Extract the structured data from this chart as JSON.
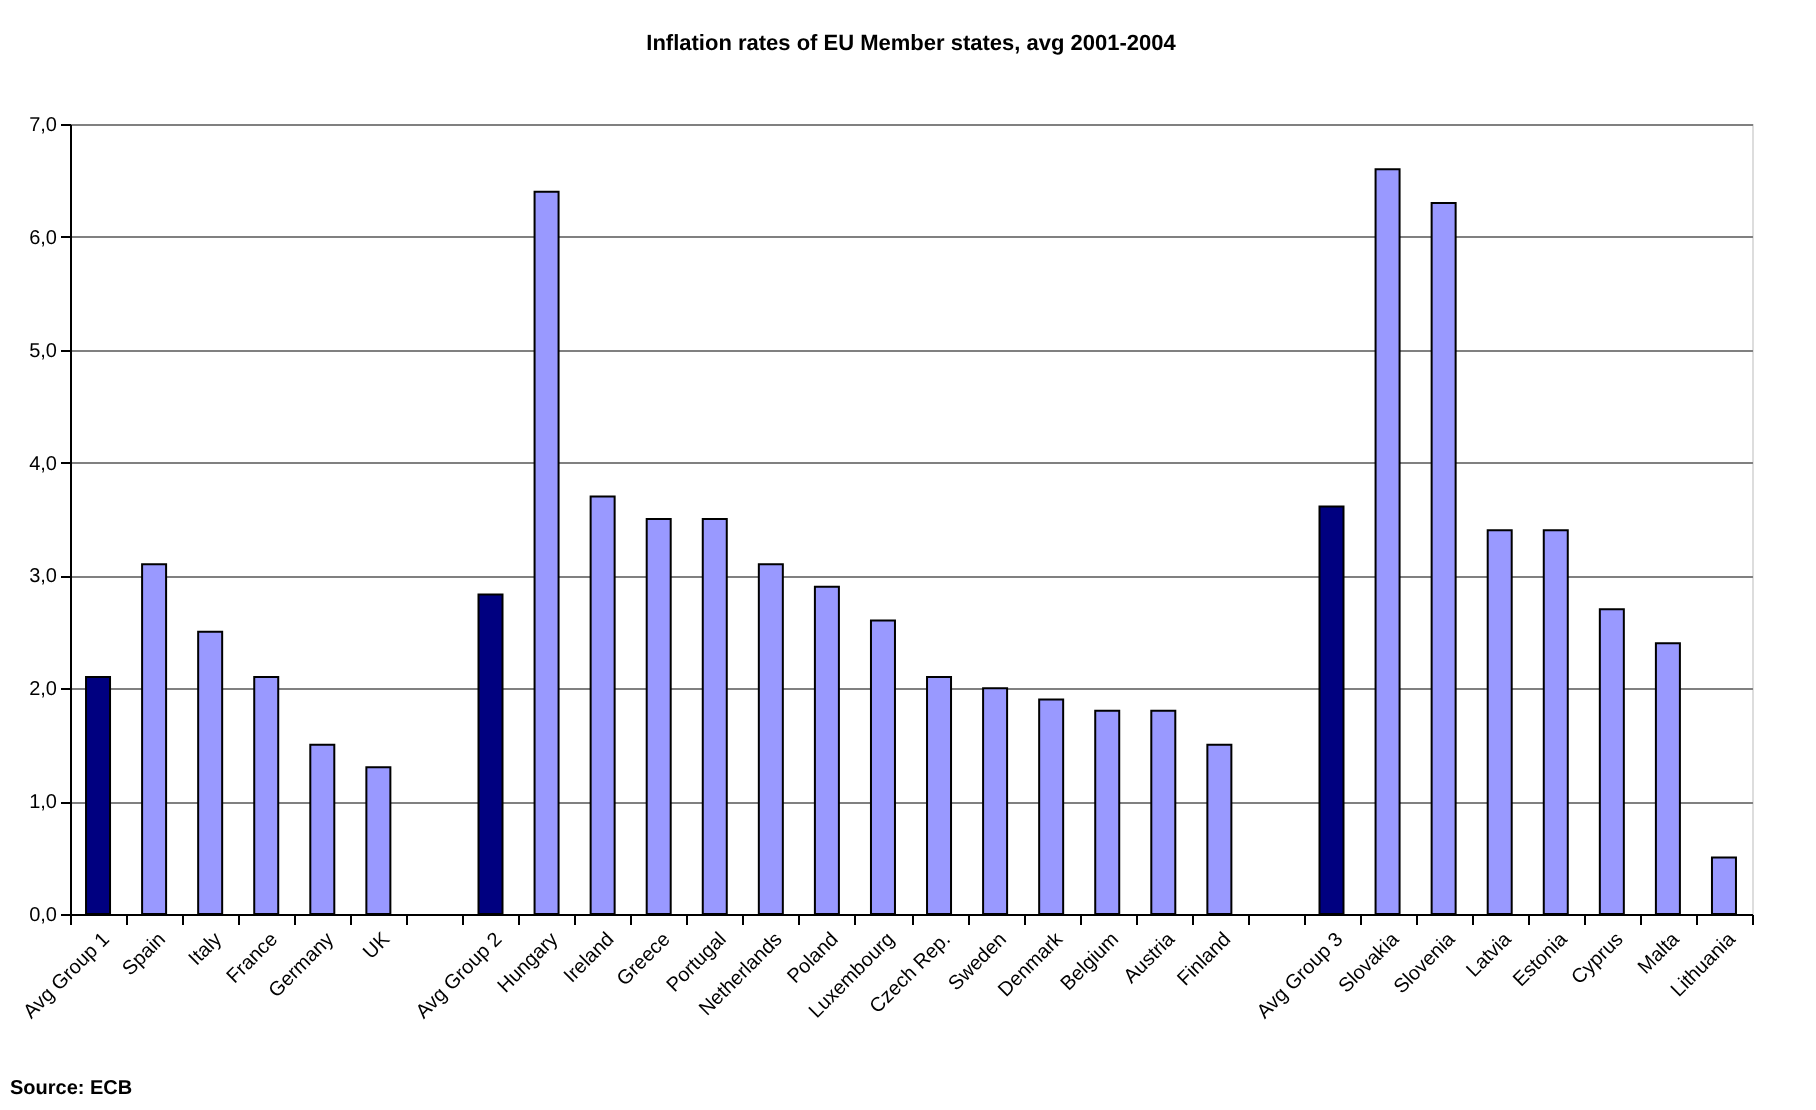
{
  "chart_data": {
    "type": "bar",
    "title": "Inflation rates of EU Member states, avg 2001-2004",
    "categories": [
      "Avg Group 1",
      "Spain",
      "Italy",
      "France",
      "Germany",
      "UK",
      null,
      "Avg Group 2",
      "Hungary",
      "Ireland",
      "Greece",
      "Portugal",
      "Netherlands",
      "Poland",
      "Luxembourg",
      "Czech Rep.",
      "Sweden",
      "Denmark",
      "Belgium",
      "Austria",
      "Finland",
      null,
      "Avg Group 3",
      "Slovakia",
      "Slovenia",
      "Latvia",
      "Estonia",
      "Cyprus",
      "Malta",
      "Lithuania"
    ],
    "values": [
      2.1,
      3.1,
      2.5,
      2.1,
      1.5,
      1.3,
      null,
      2.83,
      6.4,
      3.7,
      3.5,
      3.5,
      3.1,
      2.9,
      2.6,
      2.1,
      2.0,
      1.9,
      1.8,
      1.8,
      1.5,
      null,
      3.61,
      6.6,
      6.3,
      3.4,
      3.4,
      2.7,
      2.4,
      0.5
    ],
    "colors": [
      "#000080",
      "#9999ff",
      "#9999ff",
      "#9999ff",
      "#9999ff",
      "#9999ff",
      "#9999ff",
      "#000080",
      "#9999ff",
      "#9999ff",
      "#9999ff",
      "#9999ff",
      "#9999ff",
      "#9999ff",
      "#9999ff",
      "#9999ff",
      "#9999ff",
      "#9999ff",
      "#9999ff",
      "#9999ff",
      "#9999ff",
      "#9999ff",
      "#000080",
      "#9999ff",
      "#9999ff",
      "#9999ff",
      "#9999ff",
      "#9999ff",
      "#9999ff",
      "#9999ff"
    ],
    "ylim": [
      0,
      7
    ],
    "yticks": [
      {
        "value": 0,
        "label": "0,0"
      },
      {
        "value": 1,
        "label": "1,0"
      },
      {
        "value": 2,
        "label": "2,0"
      },
      {
        "value": 3,
        "label": "3,0"
      },
      {
        "value": 4,
        "label": "4,0"
      },
      {
        "value": 5,
        "label": "5,0"
      },
      {
        "value": 6,
        "label": "6,0"
      },
      {
        "value": 7,
        "label": "7,0"
      }
    ],
    "grid": "y",
    "annotations": [
      "Source: ECB"
    ]
  }
}
